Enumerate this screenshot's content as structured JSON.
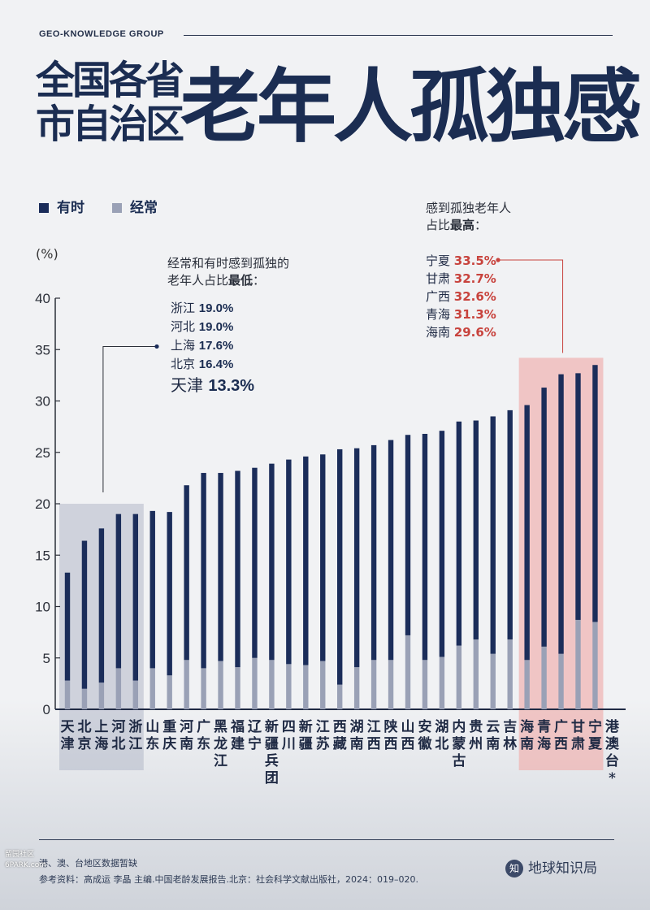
{
  "header": {
    "brand": "GEO-KNOWLEDGE GROUP",
    "title_small_line1": "全国各省",
    "title_small_line2": "市自治区",
    "title_big": "老年人孤独感"
  },
  "legend": [
    {
      "label": "有时",
      "color": "#1b2d5a"
    },
    {
      "label": "经常",
      "color": "#9aa1b6"
    }
  ],
  "y_unit": "(%)",
  "low_note": {
    "line1": "经常和有时感到孤独的",
    "line2_prefix": "老年人占比",
    "line2_bold": "最低",
    "line2_suffix": "：",
    "items": [
      {
        "name": "浙江",
        "value": "19.0%"
      },
      {
        "name": "河北",
        "value": "19.0%"
      },
      {
        "name": "上海",
        "value": "17.6%"
      },
      {
        "name": "北京",
        "value": "16.4%"
      },
      {
        "name": "天津",
        "value": "13.3%"
      }
    ]
  },
  "high_note": {
    "line1": "感到孤独老年人",
    "line2_prefix": "占比",
    "line2_bold": "最高",
    "line2_suffix": "：",
    "items": [
      {
        "name": "宁夏",
        "value": "33.5%"
      },
      {
        "name": "甘肃",
        "value": "32.7%"
      },
      {
        "name": "广西",
        "value": "32.6%"
      },
      {
        "name": "青海",
        "value": "31.3%"
      },
      {
        "name": "海南",
        "value": "29.6%"
      }
    ]
  },
  "chart_data": {
    "type": "bar",
    "stacked": true,
    "ylim": [
      0,
      40
    ],
    "yticks": [
      0,
      5,
      10,
      15,
      20,
      25,
      30,
      35,
      40
    ],
    "ylabel": "(%)",
    "categories": [
      "天津",
      "北京",
      "上海",
      "河北",
      "浙江",
      "山东",
      "重庆",
      "河南",
      "广东",
      "黑龙江",
      "福建",
      "辽宁",
      "新疆兵团",
      "四川",
      "新疆",
      "江苏",
      "西藏",
      "湖南",
      "江西",
      "陕西",
      "山西",
      "安徽",
      "湖北",
      "内蒙古",
      "贵州",
      "云南",
      "吉林",
      "海南",
      "青海",
      "广西",
      "甘肃",
      "宁夏",
      "港澳台*"
    ],
    "series": [
      {
        "name": "经常",
        "values": [
          2.8,
          2.0,
          2.6,
          4.0,
          2.8,
          4.0,
          3.3,
          4.8,
          4.0,
          4.7,
          4.1,
          5.0,
          4.8,
          4.4,
          4.3,
          4.7,
          2.4,
          4.1,
          4.8,
          4.8,
          7.2,
          4.8,
          5.1,
          6.2,
          6.8,
          5.4,
          6.8,
          4.8,
          6.1,
          5.4,
          8.7,
          8.5,
          null
        ]
      },
      {
        "name": "有时",
        "values": [
          10.5,
          14.4,
          15.0,
          15.0,
          16.2,
          15.3,
          15.9,
          17.0,
          19.0,
          18.3,
          19.1,
          18.5,
          19.1,
          19.9,
          20.3,
          20.1,
          22.9,
          21.3,
          20.9,
          21.4,
          19.5,
          22.0,
          22.0,
          21.8,
          21.3,
          23.1,
          22.3,
          24.8,
          25.2,
          27.2,
          24.0,
          25.0,
          null
        ]
      }
    ],
    "totals": [
      13.3,
      16.4,
      17.6,
      19.0,
      19.0,
      19.3,
      19.2,
      21.8,
      23.0,
      23.0,
      23.2,
      23.5,
      23.9,
      24.3,
      24.6,
      24.8,
      25.3,
      25.4,
      25.7,
      26.2,
      26.7,
      26.8,
      27.1,
      28.0,
      28.1,
      28.5,
      29.1,
      29.6,
      31.3,
      32.6,
      32.7,
      33.5,
      null
    ],
    "highlight_low": [
      "天津",
      "北京",
      "上海",
      "河北",
      "浙江"
    ],
    "highlight_high": [
      "海南",
      "青海",
      "广西",
      "甘肃",
      "宁夏"
    ]
  },
  "footer": {
    "note": "港、澳、台地区数据暂缺",
    "source": "参考资料：高成运 李晶 主编.中国老龄发展报告.北京：社会科学文献出版社，2024：019–020.",
    "logo_text": "地球知识局",
    "logo_mark": "知",
    "watermark_line1": "留园社区",
    "watermark_line2": "6PARK.com"
  }
}
